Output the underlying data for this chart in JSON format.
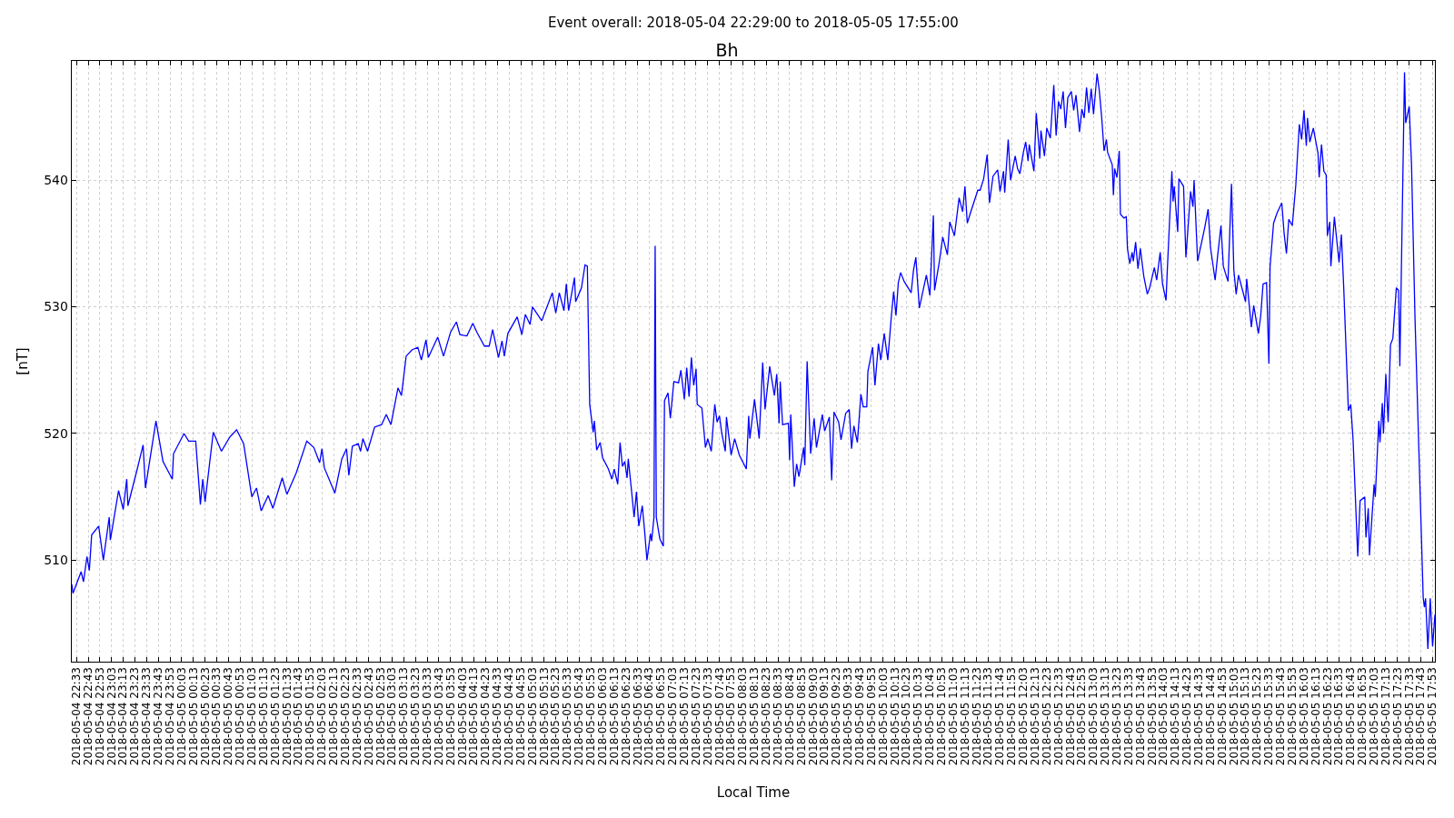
{
  "chart_data": {
    "type": "line",
    "title": "Bh",
    "subtitle": "Event overall: 2018-05-04 22:29:00 to 2018-05-05 17:55:00",
    "xlabel": "Local Time",
    "ylabel": "[nT]",
    "grid": true,
    "marker": "none",
    "line_style": "solid",
    "xlim": [
      "2018-05-04T22:29",
      "2018-05-05T17:55"
    ],
    "ylim": [
      502,
      549.4
    ],
    "yticks": [
      510,
      520,
      530,
      540
    ],
    "xticks": [
      {
        "value": "2018-05-04T22:33",
        "label": "2018-05-04 22:33"
      },
      {
        "value": "2018-05-04T22:43",
        "label": "2018-05-04 22:43"
      },
      {
        "value": "2018-05-04T22:53",
        "label": "2018-05-04 22:53"
      },
      {
        "value": "2018-05-04T23:03",
        "label": "2018-05-04 23:03"
      },
      {
        "value": "2018-05-04T23:13",
        "label": "2018-05-04 23:13"
      },
      {
        "value": "2018-05-04T23:23",
        "label": "2018-05-04 23:23"
      },
      {
        "value": "2018-05-04T23:33",
        "label": "2018-05-04 23:33"
      },
      {
        "value": "2018-05-04T23:43",
        "label": "2018-05-04 23:43"
      },
      {
        "value": "2018-05-04T23:53",
        "label": "2018-05-04 23:53"
      },
      {
        "value": "2018-05-05T00:03",
        "label": "2018-05-05 00:03"
      },
      {
        "value": "2018-05-05T00:13",
        "label": "2018-05-05 00:13"
      },
      {
        "value": "2018-05-05T00:23",
        "label": "2018-05-05 00:23"
      },
      {
        "value": "2018-05-05T00:33",
        "label": "2018-05-05 00:33"
      },
      {
        "value": "2018-05-05T00:43",
        "label": "2018-05-05 00:43"
      },
      {
        "value": "2018-05-05T00:53",
        "label": "2018-05-05 00:53"
      },
      {
        "value": "2018-05-05T01:03",
        "label": "2018-05-05 01:03"
      },
      {
        "value": "2018-05-05T01:13",
        "label": "2018-05-05 01:13"
      },
      {
        "value": "2018-05-05T01:23",
        "label": "2018-05-05 01:23"
      },
      {
        "value": "2018-05-05T01:33",
        "label": "2018-05-05 01:33"
      },
      {
        "value": "2018-05-05T01:43",
        "label": "2018-05-05 01:43"
      },
      {
        "value": "2018-05-05T01:53",
        "label": "2018-05-05 01:53"
      },
      {
        "value": "2018-05-05T02:03",
        "label": "2018-05-05 02:03"
      },
      {
        "value": "2018-05-05T02:13",
        "label": "2018-05-05 02:13"
      },
      {
        "value": "2018-05-05T02:23",
        "label": "2018-05-05 02:23"
      },
      {
        "value": "2018-05-05T02:33",
        "label": "2018-05-05 02:33"
      },
      {
        "value": "2018-05-05T02:43",
        "label": "2018-05-05 02:43"
      },
      {
        "value": "2018-05-05T02:53",
        "label": "2018-05-05 02:53"
      },
      {
        "value": "2018-05-05T03:03",
        "label": "2018-05-05 03:03"
      },
      {
        "value": "2018-05-05T03:13",
        "label": "2018-05-05 03:13"
      },
      {
        "value": "2018-05-05T03:23",
        "label": "2018-05-05 03:23"
      },
      {
        "value": "2018-05-05T03:33",
        "label": "2018-05-05 03:33"
      },
      {
        "value": "2018-05-05T03:43",
        "label": "2018-05-05 03:43"
      },
      {
        "value": "2018-05-05T03:53",
        "label": "2018-05-05 03:53"
      },
      {
        "value": "2018-05-05T04:03",
        "label": "2018-05-05 04:03"
      },
      {
        "value": "2018-05-05T04:13",
        "label": "2018-05-05 04:13"
      },
      {
        "value": "2018-05-05T04:23",
        "label": "2018-05-05 04:23"
      },
      {
        "value": "2018-05-05T04:33",
        "label": "2018-05-05 04:33"
      },
      {
        "value": "2018-05-05T04:43",
        "label": "2018-05-05 04:43"
      },
      {
        "value": "2018-05-05T04:53",
        "label": "2018-05-05 04:53"
      },
      {
        "value": "2018-05-05T05:03",
        "label": "2018-05-05 05:03"
      },
      {
        "value": "2018-05-05T05:13",
        "label": "2018-05-05 05:13"
      },
      {
        "value": "2018-05-05T05:23",
        "label": "2018-05-05 05:23"
      },
      {
        "value": "2018-05-05T05:33",
        "label": "2018-05-05 05:33"
      },
      {
        "value": "2018-05-05T05:43",
        "label": "2018-05-05 05:43"
      },
      {
        "value": "2018-05-05T05:53",
        "label": "2018-05-05 05:53"
      },
      {
        "value": "2018-05-05T06:03",
        "label": "2018-05-05 06:03"
      },
      {
        "value": "2018-05-05T06:13",
        "label": "2018-05-05 06:13"
      },
      {
        "value": "2018-05-05T06:23",
        "label": "2018-05-05 06:23"
      },
      {
        "value": "2018-05-05T06:33",
        "label": "2018-05-05 06:33"
      },
      {
        "value": "2018-05-05T06:43",
        "label": "2018-05-05 06:43"
      },
      {
        "value": "2018-05-05T06:53",
        "label": "2018-05-05 06:53"
      },
      {
        "value": "2018-05-05T07:03",
        "label": "2018-05-05 07:03"
      },
      {
        "value": "2018-05-05T07:13",
        "label": "2018-05-05 07:13"
      },
      {
        "value": "2018-05-05T07:23",
        "label": "2018-05-05 07:23"
      },
      {
        "value": "2018-05-05T07:33",
        "label": "2018-05-05 07:33"
      },
      {
        "value": "2018-05-05T07:43",
        "label": "2018-05-05 07:43"
      },
      {
        "value": "2018-05-05T07:53",
        "label": "2018-05-05 07:53"
      },
      {
        "value": "2018-05-05T08:03",
        "label": "2018-05-05 08:03"
      },
      {
        "value": "2018-05-05T08:13",
        "label": "2018-05-05 08:13"
      },
      {
        "value": "2018-05-05T08:23",
        "label": "2018-05-05 08:23"
      },
      {
        "value": "2018-05-05T08:33",
        "label": "2018-05-05 08:33"
      },
      {
        "value": "2018-05-05T08:43",
        "label": "2018-05-05 08:43"
      },
      {
        "value": "2018-05-05T08:53",
        "label": "2018-05-05 08:53"
      },
      {
        "value": "2018-05-05T09:03",
        "label": "2018-05-05 09:03"
      },
      {
        "value": "2018-05-05T09:13",
        "label": "2018-05-05 09:13"
      },
      {
        "value": "2018-05-05T09:23",
        "label": "2018-05-05 09:23"
      },
      {
        "value": "2018-05-05T09:33",
        "label": "2018-05-05 09:33"
      },
      {
        "value": "2018-05-05T09:43",
        "label": "2018-05-05 09:43"
      },
      {
        "value": "2018-05-05T09:53",
        "label": "2018-05-05 09:53"
      },
      {
        "value": "2018-05-05T10:03",
        "label": "2018-05-05 10:03"
      },
      {
        "value": "2018-05-05T10:13",
        "label": "2018-05-05 10:13"
      },
      {
        "value": "2018-05-05T10:23",
        "label": "2018-05-05 10:23"
      },
      {
        "value": "2018-05-05T10:33",
        "label": "2018-05-05 10:33"
      },
      {
        "value": "2018-05-05T10:43",
        "label": "2018-05-05 10:43"
      },
      {
        "value": "2018-05-05T10:53",
        "label": "2018-05-05 10:53"
      },
      {
        "value": "2018-05-05T11:03",
        "label": "2018-05-05 11:03"
      },
      {
        "value": "2018-05-05T11:13",
        "label": "2018-05-05 11:13"
      },
      {
        "value": "2018-05-05T11:23",
        "label": "2018-05-05 11:23"
      },
      {
        "value": "2018-05-05T11:33",
        "label": "2018-05-05 11:33"
      },
      {
        "value": "2018-05-05T11:43",
        "label": "2018-05-05 11:43"
      },
      {
        "value": "2018-05-05T11:53",
        "label": "2018-05-05 11:53"
      },
      {
        "value": "2018-05-05T12:03",
        "label": "2018-05-05 12:03"
      },
      {
        "value": "2018-05-05T12:13",
        "label": "2018-05-05 12:13"
      },
      {
        "value": "2018-05-05T12:23",
        "label": "2018-05-05 12:23"
      },
      {
        "value": "2018-05-05T12:33",
        "label": "2018-05-05 12:33"
      },
      {
        "value": "2018-05-05T12:43",
        "label": "2018-05-05 12:43"
      },
      {
        "value": "2018-05-05T12:53",
        "label": "2018-05-05 12:53"
      },
      {
        "value": "2018-05-05T13:03",
        "label": "2018-05-05 13:03"
      },
      {
        "value": "2018-05-05T13:13",
        "label": "2018-05-05 13:13"
      },
      {
        "value": "2018-05-05T13:23",
        "label": "2018-05-05 13:23"
      },
      {
        "value": "2018-05-05T13:33",
        "label": "2018-05-05 13:33"
      },
      {
        "value": "2018-05-05T13:43",
        "label": "2018-05-05 13:43"
      },
      {
        "value": "2018-05-05T13:53",
        "label": "2018-05-05 13:53"
      },
      {
        "value": "2018-05-05T14:03",
        "label": "2018-05-05 14:03"
      },
      {
        "value": "2018-05-05T14:13",
        "label": "2018-05-05 14:13"
      },
      {
        "value": "2018-05-05T14:23",
        "label": "2018-05-05 14:23"
      },
      {
        "value": "2018-05-05T14:33",
        "label": "2018-05-05 14:33"
      },
      {
        "value": "2018-05-05T14:43",
        "label": "2018-05-05 14:43"
      },
      {
        "value": "2018-05-05T14:53",
        "label": "2018-05-05 14:53"
      },
      {
        "value": "2018-05-05T15:03",
        "label": "2018-05-05 15:03"
      },
      {
        "value": "2018-05-05T15:13",
        "label": "2018-05-05 15:13"
      },
      {
        "value": "2018-05-05T15:23",
        "label": "2018-05-05 15:23"
      },
      {
        "value": "2018-05-05T15:33",
        "label": "2018-05-05 15:33"
      },
      {
        "value": "2018-05-05T15:43",
        "label": "2018-05-05 15:43"
      },
      {
        "value": "2018-05-05T15:53",
        "label": "2018-05-05 15:53"
      },
      {
        "value": "2018-05-05T16:03",
        "label": "2018-05-05 16:03"
      },
      {
        "value": "2018-05-05T16:13",
        "label": "2018-05-05 16:13"
      },
      {
        "value": "2018-05-05T16:23",
        "label": "2018-05-05 16:23"
      },
      {
        "value": "2018-05-05T16:33",
        "label": "2018-05-05 16:33"
      },
      {
        "value": "2018-05-05T16:43",
        "label": "2018-05-05 16:43"
      },
      {
        "value": "2018-05-05T16:53",
        "label": "2018-05-05 16:53"
      },
      {
        "value": "2018-05-05T17:03",
        "label": "2018-05-05 17:03"
      },
      {
        "value": "2018-05-05T17:13",
        "label": "2018-05-05 17:13"
      },
      {
        "value": "2018-05-05T17:23",
        "label": "2018-05-05 17:23"
      },
      {
        "value": "2018-05-05T17:33",
        "label": "2018-05-05 17:33"
      },
      {
        "value": "2018-05-05T17:43",
        "label": "2018-05-05 17:43"
      },
      {
        "value": "2018-05-05T17:53",
        "label": "2018-05-05 17:53"
      }
    ],
    "series": [
      {
        "color": "#0000ff",
        "x": [
          "2018-05-04T22:29",
          "2018-05-04T22:30",
          "2018-05-04T22:37",
          "2018-05-04T22:39",
          "2018-05-04T22:42",
          "2018-05-04T22:44",
          "2018-05-04T22:46",
          "2018-05-04T22:52",
          "2018-05-04T22:56",
          "2018-05-04T23:01",
          "2018-05-04T23:02",
          "2018-05-04T23:09",
          "2018-05-04T23:13",
          "2018-05-04T23:16",
          "2018-05-04T23:17",
          "2018-05-04T23:25",
          "2018-05-04T23:30",
          "2018-05-04T23:32",
          "2018-05-04T23:41",
          "2018-05-04T23:47",
          "2018-05-04T23:55",
          "2018-05-04T23:56",
          "2018-05-05T00:05",
          "2018-05-05T00:09",
          "2018-05-05T00:15",
          "2018-05-05T00:19",
          "2018-05-05T00:21",
          "2018-05-05T00:23",
          "2018-05-05T00:30",
          "2018-05-05T00:37",
          "2018-05-05T00:44",
          "2018-05-05T00:50",
          "2018-05-05T00:56",
          "2018-05-05T01:03",
          "2018-05-05T01:07",
          "2018-05-05T01:11",
          "2018-05-05T01:17",
          "2018-05-05T01:21",
          "2018-05-05T01:29",
          "2018-05-05T01:33",
          "2018-05-05T01:41",
          "2018-05-05T01:50",
          "2018-05-05T01:56",
          "2018-05-05T02:01",
          "2018-05-05T02:03",
          "2018-05-05T02:05",
          "2018-05-05T02:14",
          "2018-05-05T02:20",
          "2018-05-05T02:24",
          "2018-05-05T02:26",
          "2018-05-05T02:29",
          "2018-05-05T02:34",
          "2018-05-05T02:36",
          "2018-05-05T02:38",
          "2018-05-05T02:42",
          "2018-05-05T02:48",
          "2018-05-05T02:54",
          "2018-05-05T02:58",
          "2018-05-05T03:02",
          "2018-05-05T03:08",
          "2018-05-05T03:11",
          "2018-05-05T03:15",
          "2018-05-05T03:20",
          "2018-05-05T03:25",
          "2018-05-05T03:28",
          "2018-05-05T03:32",
          "2018-05-05T03:34",
          "2018-05-05T03:42",
          "2018-05-05T03:47",
          "2018-05-05T03:53",
          "2018-05-05T03:58",
          "2018-05-05T04:01",
          "2018-05-05T04:07",
          "2018-05-05T04:12",
          "2018-05-05T04:16",
          "2018-05-05T04:22",
          "2018-05-05T04:26",
          "2018-05-05T04:29",
          "2018-05-05T04:34",
          "2018-05-05T04:37",
          "2018-05-05T04:39",
          "2018-05-05T04:42",
          "2018-05-05T04:50",
          "2018-05-05T04:54",
          "2018-05-05T04:57",
          "2018-05-05T05:01",
          "2018-05-05T05:03",
          "2018-05-05T05:11",
          "2018-05-05T05:20",
          "2018-05-05T05:23",
          "2018-05-05T05:26",
          "2018-05-05T05:30",
          "2018-05-05T05:32",
          "2018-05-05T05:34",
          "2018-05-05T05:39",
          "2018-05-05T05:40",
          "2018-05-05T05:45",
          "2018-05-05T05:48",
          "2018-05-05T05:50",
          "2018-05-05T05:52",
          "2018-05-05T05:55",
          "2018-05-05T05:56",
          "2018-05-05T05:58",
          "2018-05-05T06:01",
          "2018-05-05T06:03",
          "2018-05-05T06:08",
          "2018-05-05T06:11",
          "2018-05-05T06:13",
          "2018-05-05T06:16",
          "2018-05-05T06:18",
          "2018-05-05T06:20",
          "2018-05-05T06:22",
          "2018-05-05T06:24",
          "2018-05-05T06:25",
          "2018-05-05T06:28",
          "2018-05-05T06:30",
          "2018-05-05T06:32",
          "2018-05-05T06:34",
          "2018-05-05T06:37",
          "2018-05-05T06:39",
          "2018-05-05T06:41",
          "2018-05-05T06:44",
          "2018-05-05T06:45",
          "2018-05-05T06:47",
          "2018-05-05T06:48",
          "2018-05-05T06:49",
          "2018-05-05T06:52",
          "2018-05-05T06:55",
          "2018-05-05T06:56",
          "2018-05-05T06:59",
          "2018-05-05T07:01",
          "2018-05-05T07:04",
          "2018-05-05T07:08",
          "2018-05-05T07:10",
          "2018-05-05T07:13",
          "2018-05-05T07:15",
          "2018-05-05T07:17",
          "2018-05-05T07:19",
          "2018-05-05T07:21",
          "2018-05-05T07:23",
          "2018-05-05T07:24",
          "2018-05-05T07:28",
          "2018-05-05T07:31",
          "2018-05-05T07:33",
          "2018-05-05T07:36",
          "2018-05-05T07:39",
          "2018-05-05T07:41",
          "2018-05-05T07:43",
          "2018-05-05T07:45",
          "2018-05-05T07:48",
          "2018-05-05T07:49",
          "2018-05-05T07:53",
          "2018-05-05T07:56",
          "2018-05-05T08:00",
          "2018-05-05T08:06",
          "2018-05-05T08:08",
          "2018-05-05T08:09",
          "2018-05-05T08:13",
          "2018-05-05T08:17",
          "2018-05-05T08:20",
          "2018-05-05T08:22",
          "2018-05-05T08:26",
          "2018-05-05T08:30",
          "2018-05-05T08:32",
          "2018-05-05T08:34",
          "2018-05-05T08:35",
          "2018-05-05T08:37",
          "2018-05-05T08:42",
          "2018-05-05T08:43",
          "2018-05-05T08:44",
          "2018-05-05T08:47",
          "2018-05-05T08:49",
          "2018-05-05T08:51",
          "2018-05-05T08:55",
          "2018-05-05T08:56",
          "2018-05-05T08:58",
          "2018-05-05T09:01",
          "2018-05-05T09:04",
          "2018-05-05T09:06",
          "2018-05-05T09:11",
          "2018-05-05T09:13",
          "2018-05-05T09:17",
          "2018-05-05T09:19",
          "2018-05-05T09:21",
          "2018-05-05T09:25",
          "2018-05-05T09:27",
          "2018-05-05T09:31",
          "2018-05-05T09:34",
          "2018-05-05T09:36",
          "2018-05-05T09:38",
          "2018-05-05T09:41",
          "2018-05-05T09:44",
          "2018-05-05T09:46",
          "2018-05-05T09:49",
          "2018-05-05T09:50",
          "2018-05-05T09:54",
          "2018-05-05T09:56",
          "2018-05-05T09:59",
          "2018-05-05T10:01",
          "2018-05-05T10:04",
          "2018-05-05T10:07",
          "2018-05-05T10:10",
          "2018-05-05T10:12",
          "2018-05-05T10:14",
          "2018-05-05T10:16",
          "2018-05-05T10:18",
          "2018-05-05T10:21",
          "2018-05-05T10:27",
          "2018-05-05T10:29",
          "2018-05-05T10:31",
          "2018-05-05T10:34",
          "2018-05-05T10:40",
          "2018-05-05T10:43",
          "2018-05-05T10:46",
          "2018-05-05T10:47",
          "2018-05-05T10:51",
          "2018-05-05T10:54",
          "2018-05-05T10:58",
          "2018-05-05T11:00",
          "2018-05-05T11:04",
          "2018-05-05T11:08",
          "2018-05-05T11:11",
          "2018-05-05T11:13",
          "2018-05-05T11:15",
          "2018-05-05T11:18",
          "2018-05-05T11:24",
          "2018-05-05T11:26",
          "2018-05-05T11:29",
          "2018-05-05T11:32",
          "2018-05-05T11:34",
          "2018-05-05T11:37",
          "2018-05-05T11:41",
          "2018-05-05T11:43",
          "2018-05-05T11:46",
          "2018-05-05T11:47",
          "2018-05-05T11:50",
          "2018-05-05T11:52",
          "2018-05-05T11:56",
          "2018-05-05T11:58",
          "2018-05-05T12:00",
          "2018-05-05T12:03",
          "2018-05-05T12:05",
          "2018-05-05T12:07",
          "2018-05-05T12:08",
          "2018-05-05T12:12",
          "2018-05-05T12:14",
          "2018-05-05T12:17",
          "2018-05-05T12:18",
          "2018-05-05T12:21",
          "2018-05-05T12:23",
          "2018-05-05T12:26",
          "2018-05-05T12:29",
          "2018-05-05T12:31",
          "2018-05-05T12:33",
          "2018-05-05T12:35",
          "2018-05-05T12:37",
          "2018-05-05T12:39",
          "2018-05-05T12:41",
          "2018-05-05T12:44",
          "2018-05-05T12:46",
          "2018-05-05T12:48",
          "2018-05-05T12:51",
          "2018-05-05T12:53",
          "2018-05-05T12:55",
          "2018-05-05T12:57",
          "2018-05-05T12:59",
          "2018-05-05T13:01",
          "2018-05-05T13:03",
          "2018-05-05T13:06",
          "2018-05-05T13:08",
          "2018-05-05T13:10",
          "2018-05-05T13:12",
          "2018-05-05T13:14",
          "2018-05-05T13:15",
          "2018-05-05T13:19",
          "2018-05-05T13:20",
          "2018-05-05T13:21",
          "2018-05-05T13:23",
          "2018-05-05T13:25",
          "2018-05-05T13:26",
          "2018-05-05T13:29",
          "2018-05-05T13:31",
          "2018-05-05T13:32",
          "2018-05-05T13:34",
          "2018-05-05T13:36",
          "2018-05-05T13:37",
          "2018-05-05T13:39",
          "2018-05-05T13:41",
          "2018-05-05T13:43",
          "2018-05-05T13:46",
          "2018-05-05T13:49",
          "2018-05-05T13:51",
          "2018-05-05T13:55",
          "2018-05-05T13:57",
          "2018-05-05T14:00",
          "2018-05-05T14:02",
          "2018-05-05T14:05",
          "2018-05-05T14:06",
          "2018-05-05T14:10",
          "2018-05-05T14:11",
          "2018-05-05T14:12",
          "2018-05-05T14:15",
          "2018-05-05T14:16",
          "2018-05-05T14:20",
          "2018-05-05T14:22",
          "2018-05-05T14:26",
          "2018-05-05T14:28",
          "2018-05-05T14:29",
          "2018-05-05T14:32",
          "2018-05-05T14:38",
          "2018-05-05T14:41",
          "2018-05-05T14:43",
          "2018-05-05T14:47",
          "2018-05-05T14:49",
          "2018-05-05T14:52",
          "2018-05-05T14:54",
          "2018-05-05T14:58",
          "2018-05-05T15:01",
          "2018-05-05T15:03",
          "2018-05-05T15:05",
          "2018-05-05T15:07",
          "2018-05-05T15:13",
          "2018-05-05T15:14",
          "2018-05-05T15:18",
          "2018-05-05T15:20",
          "2018-05-05T15:24",
          "2018-05-05T15:26",
          "2018-05-05T15:28",
          "2018-05-05T15:31",
          "2018-05-05T15:33",
          "2018-05-05T15:34",
          "2018-05-05T15:37",
          "2018-05-05T15:40",
          "2018-05-05T15:44",
          "2018-05-05T15:46",
          "2018-05-05T15:48",
          "2018-05-05T15:50",
          "2018-05-05T15:53",
          "2018-05-05T15:56",
          "2018-05-05T15:59",
          "2018-05-05T16:01",
          "2018-05-05T16:03",
          "2018-05-05T16:05",
          "2018-05-05T16:06",
          "2018-05-05T16:08",
          "2018-05-05T16:11",
          "2018-05-05T16:15",
          "2018-05-05T16:16",
          "2018-05-05T16:18",
          "2018-05-05T16:20",
          "2018-05-05T16:22",
          "2018-05-05T16:23",
          "2018-05-05T16:25",
          "2018-05-05T16:26",
          "2018-05-05T16:29",
          "2018-05-05T16:33",
          "2018-05-05T16:35",
          "2018-05-05T16:37",
          "2018-05-05T16:41",
          "2018-05-05T16:43",
          "2018-05-05T16:45",
          "2018-05-05T16:49",
          "2018-05-05T16:51",
          "2018-05-05T16:55",
          "2018-05-05T16:56",
          "2018-05-05T16:58",
          "2018-05-05T16:59",
          "2018-05-05T17:03",
          "2018-05-05T17:04",
          "2018-05-05T17:07",
          "2018-05-05T17:08",
          "2018-05-05T17:10",
          "2018-05-05T17:11",
          "2018-05-05T17:13",
          "2018-05-05T17:15",
          "2018-05-05T17:17",
          "2018-05-05T17:19",
          "2018-05-05T17:22",
          "2018-05-05T17:24",
          "2018-05-05T17:25",
          "2018-05-05T17:29",
          "2018-05-05T17:30",
          "2018-05-05T17:33",
          "2018-05-05T17:35",
          "2018-05-05T17:38",
          "2018-05-05T17:45",
          "2018-05-05T17:46",
          "2018-05-05T17:47",
          "2018-05-05T17:49",
          "2018-05-05T17:51",
          "2018-05-05T17:53",
          "2018-05-05T17:55"
        ],
        "values": [
          508.1,
          507.4,
          509.1,
          508.3,
          510.3,
          509.2,
          512.0,
          512.7,
          510.0,
          513.4,
          511.6,
          515.5,
          514.0,
          516.4,
          514.3,
          517.2,
          519.1,
          515.7,
          521.0,
          517.8,
          516.4,
          518.4,
          520.0,
          519.4,
          519.4,
          514.4,
          516.4,
          514.6,
          520.1,
          518.6,
          519.7,
          520.3,
          519.2,
          515.0,
          515.7,
          513.9,
          515.1,
          514.1,
          516.5,
          515.2,
          516.9,
          519.4,
          518.9,
          517.7,
          518.8,
          517.3,
          515.3,
          518.0,
          518.8,
          516.7,
          519.0,
          519.2,
          518.6,
          519.6,
          518.6,
          520.5,
          520.7,
          521.5,
          520.7,
          523.6,
          523.0,
          526.1,
          526.6,
          526.8,
          525.8,
          527.4,
          526.0,
          527.6,
          526.1,
          528.0,
          528.8,
          527.8,
          527.7,
          528.7,
          527.9,
          526.9,
          526.9,
          528.2,
          526.0,
          527.3,
          526.1,
          527.9,
          529.2,
          527.8,
          529.4,
          528.6,
          530.0,
          528.9,
          531.1,
          529.5,
          531.1,
          529.7,
          531.8,
          529.7,
          532.3,
          530.4,
          531.5,
          533.3,
          533.2,
          522.3,
          520.1,
          521.0,
          518.7,
          519.3,
          518.1,
          517.2,
          516.4,
          517.2,
          516.0,
          519.3,
          517.4,
          517.8,
          516.5,
          518.0,
          515.3,
          513.4,
          515.4,
          512.7,
          514.3,
          512.3,
          510.0,
          512.1,
          511.5,
          513.4,
          534.8,
          513.4,
          511.7,
          511.1,
          522.6,
          523.2,
          521.2,
          524.1,
          524.0,
          525.0,
          522.7,
          525.2,
          522.9,
          526.0,
          523.8,
          525.1,
          522.3,
          522.0,
          518.9,
          519.6,
          518.6,
          522.3,
          520.9,
          521.4,
          520.0,
          518.6,
          521.3,
          518.3,
          519.6,
          518.3,
          517.2,
          521.4,
          519.6,
          522.7,
          519.6,
          525.6,
          521.9,
          525.3,
          523.0,
          524.7,
          520.8,
          524.1,
          520.7,
          520.8,
          517.9,
          521.5,
          515.8,
          517.6,
          516.6,
          518.9,
          517.5,
          525.7,
          518.4,
          521.2,
          518.9,
          521.5,
          520.2,
          521.3,
          516.3,
          521.7,
          520.9,
          519.5,
          521.6,
          521.9,
          518.8,
          520.6,
          519.3,
          523.1,
          522.1,
          522.1,
          524.9,
          526.8,
          523.8,
          527.1,
          525.8,
          527.9,
          525.8,
          529.2,
          531.2,
          529.3,
          531.9,
          532.7,
          532.0,
          531.1,
          532.9,
          533.9,
          529.9,
          532.5,
          530.9,
          537.2,
          531.3,
          533.5,
          535.5,
          534.1,
          536.7,
          535.6,
          538.6,
          537.5,
          539.5,
          536.6,
          537.5,
          539.2,
          539.2,
          540.1,
          542.0,
          538.2,
          540.3,
          540.8,
          539.1,
          540.7,
          539.0,
          543.2,
          540.0,
          541.9,
          540.9,
          540.5,
          542.2,
          543.0,
          541.5,
          542.8,
          540.7,
          545.3,
          541.7,
          543.9,
          541.9,
          544.1,
          543.3,
          547.5,
          543.5,
          546.2,
          545.6,
          547.0,
          544.1,
          546.5,
          547.0,
          545.5,
          546.7,
          543.8,
          545.6,
          544.9,
          547.3,
          545.3,
          547.2,
          545.2,
          548.4,
          547.0,
          544.9,
          542.3,
          543.2,
          542.2,
          541.2,
          538.8,
          540.9,
          540.2,
          542.3,
          537.3,
          537.0,
          537.1,
          534.6,
          533.4,
          534.3,
          533.6,
          535.1,
          533.0,
          534.6,
          532.4,
          531.0,
          531.5,
          533.1,
          532.1,
          534.3,
          531.8,
          530.5,
          532.7,
          540.7,
          538.3,
          539.5,
          535.9,
          540.1,
          539.5,
          533.9,
          539.1,
          537.9,
          540.0,
          533.6,
          536.2,
          537.7,
          534.7,
          532.1,
          533.9,
          536.4,
          533.2,
          532.0,
          539.7,
          532.9,
          531.0,
          532.5,
          530.4,
          532.2,
          528.4,
          530.1,
          527.9,
          529.3,
          531.8,
          531.9,
          525.5,
          533.2,
          536.6,
          537.4,
          538.2,
          535.8,
          534.2,
          536.9,
          536.4,
          539.6,
          544.4,
          543.2,
          545.5,
          542.7,
          544.9,
          543.0,
          544.1,
          542.1,
          540.2,
          542.8,
          540.7,
          540.4,
          535.6,
          536.7,
          533.2,
          537.1,
          533.5,
          535.7,
          531.5,
          521.8,
          522.3,
          519.5,
          510.3,
          514.7,
          515.0,
          511.8,
          514.1,
          510.4,
          516.0,
          515.0,
          521.0,
          519.3,
          522.4,
          520.0,
          524.7,
          520.9,
          527.0,
          527.5,
          531.5,
          531.3,
          525.3,
          548.5,
          544.5,
          545.8,
          541.2,
          529.0,
          507.0,
          506.3,
          507.0,
          503.0,
          507.0,
          503.2,
          505.7
        ]
      }
    ]
  }
}
